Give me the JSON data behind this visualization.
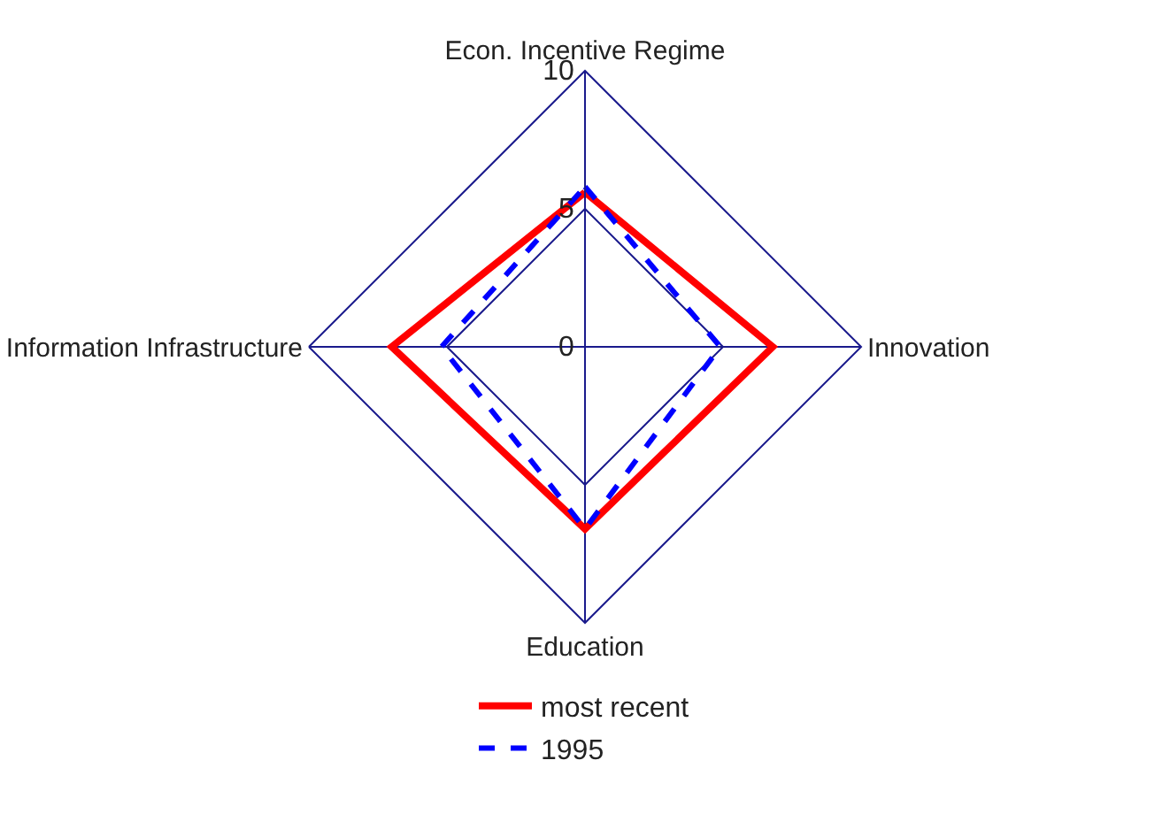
{
  "chart_data": {
    "type": "radar",
    "categories": [
      "Econ. Incentive Regime",
      "Innovation",
      "Education",
      "Information Infrastructure"
    ],
    "series": [
      {
        "name": "most recent",
        "color": "#ff0000",
        "values": [
          5.6,
          6.8,
          6.6,
          7.0
        ],
        "line_style": "solid"
      },
      {
        "name": "1995",
        "color": "#0000ff",
        "values": [
          5.8,
          4.9,
          6.6,
          5.2
        ],
        "line_style": "dashed"
      }
    ],
    "ylim": [
      0,
      10
    ],
    "yticks": [
      0,
      5,
      10
    ],
    "grid": true,
    "legend": "bottom",
    "marker": "none"
  }
}
